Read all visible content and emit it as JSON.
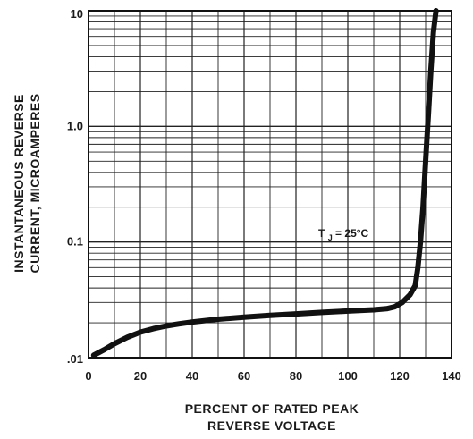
{
  "chart_data": {
    "type": "line",
    "title": "",
    "xlabel_lines": [
      "PERCENT OF RATED PEAK",
      "REVERSE VOLTAGE"
    ],
    "ylabel_lines": [
      "INSTANTANEOUS REVERSE",
      "CURRENT, MICROAMPERES"
    ],
    "x_scale": "linear",
    "y_scale": "log",
    "xlim": [
      0,
      140
    ],
    "ylim": [
      0.01,
      10
    ],
    "x_ticks": [
      0,
      20,
      40,
      60,
      80,
      100,
      120,
      140
    ],
    "x_tick_labels": [
      "0",
      "20",
      "40",
      "60",
      "80",
      "100",
      "120",
      "140"
    ],
    "y_ticks": [
      0.01,
      0.1,
      1.0,
      10
    ],
    "y_tick_labels": [
      ".01",
      "0.1",
      "1.0",
      "10"
    ],
    "grid": true,
    "line_color": "#111111",
    "annotation": {
      "label_main": "T",
      "label_sub": "J",
      "label_rest": " = 25°C",
      "x": 123,
      "y": 0.12
    },
    "series": [
      {
        "x": [
          2,
          6,
          10,
          15,
          20,
          25,
          30,
          35,
          40,
          50,
          60,
          70,
          80,
          90,
          100,
          110,
          115,
          118,
          121,
          124,
          126,
          127,
          128,
          129,
          130,
          131,
          132,
          133,
          134
        ],
        "y": [
          0.0105,
          0.0117,
          0.0132,
          0.015,
          0.0166,
          0.0178,
          0.0188,
          0.0196,
          0.0203,
          0.0215,
          0.0224,
          0.0232,
          0.0239,
          0.0246,
          0.0253,
          0.0259,
          0.0265,
          0.0275,
          0.03,
          0.035,
          0.042,
          0.06,
          0.1,
          0.2,
          0.5,
          1.2,
          3.0,
          6.5,
          10
        ]
      }
    ]
  }
}
